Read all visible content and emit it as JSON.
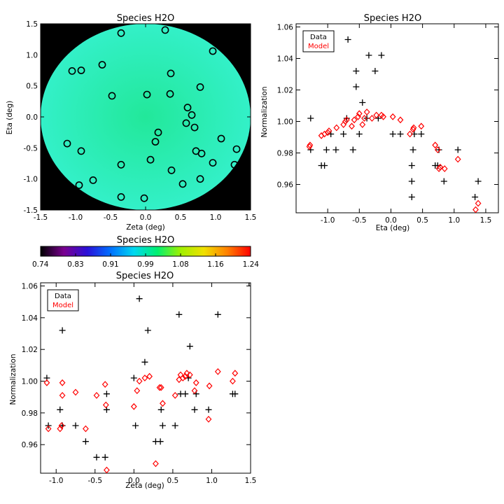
{
  "chart_data": [
    {
      "id": "map",
      "type": "scatter",
      "title": "Species H2O",
      "xlabel": "Zeta (deg)",
      "ylabel": "Eta (deg)",
      "xlim": [
        -1.5,
        1.5
      ],
      "ylim": [
        -1.5,
        1.5
      ],
      "xticks": [
        "-1.5",
        "-1.0",
        "-0.5",
        "0.0",
        "0.5",
        "1.0",
        "1.5"
      ],
      "yticks": [
        "-1.5",
        "-1.0",
        "-0.5",
        "0.0",
        "0.5",
        "1.0",
        "1.5"
      ],
      "background_color": "#000000",
      "disk_color": "#22e89a",
      "disk_edge_color": "#33f0c8",
      "marker": "circle",
      "marker_color": "#000000",
      "points": [
        [
          -0.35,
          1.35
        ],
        [
          0.28,
          1.4
        ],
        [
          -1.05,
          0.74
        ],
        [
          -0.92,
          0.75
        ],
        [
          -0.62,
          0.84
        ],
        [
          0.96,
          1.06
        ],
        [
          -0.48,
          0.34
        ],
        [
          0.02,
          0.36
        ],
        [
          0.35,
          0.37
        ],
        [
          0.36,
          0.7
        ],
        [
          0.78,
          0.48
        ],
        [
          0.6,
          0.15
        ],
        [
          0.66,
          0.03
        ],
        [
          0.58,
          -0.1
        ],
        [
          0.7,
          -0.17
        ],
        [
          0.18,
          -0.25
        ],
        [
          0.14,
          -0.4
        ],
        [
          1.08,
          -0.35
        ],
        [
          1.3,
          -0.52
        ],
        [
          -1.12,
          -0.43
        ],
        [
          -0.92,
          -0.55
        ],
        [
          0.72,
          -0.55
        ],
        [
          0.8,
          -0.59
        ],
        [
          0.96,
          -0.74
        ],
        [
          -0.35,
          -0.77
        ],
        [
          0.07,
          -0.69
        ],
        [
          0.37,
          -0.86
        ],
        [
          1.27,
          -0.77
        ],
        [
          -0.75,
          -1.02
        ],
        [
          -0.95,
          -1.1
        ],
        [
          0.53,
          -1.08
        ],
        [
          0.78,
          -1.0
        ],
        [
          -0.35,
          -1.29
        ],
        [
          -0.02,
          -1.31
        ]
      ]
    },
    {
      "id": "colorbar",
      "type": "heatmap",
      "title": "Species H2O",
      "range": [
        0.74,
        1.24
      ],
      "tick_labels": [
        "0.74",
        "0.83",
        "0.91",
        "0.99",
        "1.08",
        "1.16",
        "1.24"
      ],
      "colormap": [
        "#000000",
        "#7a0090",
        "#2a10d8",
        "#0070ff",
        "#00d8f0",
        "#00f070",
        "#a0f000",
        "#f0e000",
        "#ff8000",
        "#ff0000"
      ]
    },
    {
      "id": "eta",
      "type": "scatter",
      "title": "Species H2O",
      "xlabel": "Eta (deg)",
      "ylabel": "Normalization",
      "xlim": [
        -1.5,
        1.7
      ],
      "ylim": [
        0.942,
        1.062
      ],
      "xticks": [
        -1.0,
        -0.5,
        0.0,
        0.5,
        1.0,
        1.5
      ],
      "xtick_labels": [
        "-1.0",
        "-0.5",
        "0.0",
        "0.5",
        "1.0",
        "1.5"
      ],
      "yticks": [
        0.96,
        0.98,
        1.0,
        1.02,
        1.04,
        1.06
      ],
      "ytick_labels": [
        "0.96",
        "0.98",
        "1.00",
        "1.02",
        "1.04",
        "1.06"
      ],
      "legend": {
        "position": "top-left",
        "entries": [
          {
            "label": "Data",
            "color": "#000000"
          },
          {
            "label": "Model",
            "color": "#ff0000"
          }
        ]
      },
      "series": [
        {
          "name": "Data",
          "marker": "plus",
          "color": "#000000",
          "points": [
            [
              -1.27,
              1.002
            ],
            [
              -1.27,
              0.982
            ],
            [
              -1.1,
              0.972
            ],
            [
              -1.05,
              0.972
            ],
            [
              -1.02,
              0.982
            ],
            [
              -0.95,
              0.992
            ],
            [
              -0.87,
              0.982
            ],
            [
              -0.75,
              0.992
            ],
            [
              -0.7,
              1.002
            ],
            [
              -0.68,
              1.052
            ],
            [
              -0.6,
              0.982
            ],
            [
              -0.55,
              1.022
            ],
            [
              -0.55,
              1.032
            ],
            [
              -0.5,
              0.992
            ],
            [
              -0.45,
              1.012
            ],
            [
              -0.38,
              1.002
            ],
            [
              -0.35,
              1.042
            ],
            [
              -0.25,
              1.032
            ],
            [
              -0.15,
              1.042
            ],
            [
              -0.2,
              1.002
            ],
            [
              0.03,
              0.992
            ],
            [
              0.15,
              0.992
            ],
            [
              0.33,
              0.972
            ],
            [
              0.33,
              0.962
            ],
            [
              0.33,
              0.952
            ],
            [
              0.35,
              0.982
            ],
            [
              0.37,
              0.992
            ],
            [
              0.48,
              0.992
            ],
            [
              0.7,
              0.972
            ],
            [
              0.74,
              0.972
            ],
            [
              0.76,
              0.982
            ],
            [
              0.84,
              0.962
            ],
            [
              1.06,
              0.982
            ],
            [
              1.33,
              0.952
            ],
            [
              1.38,
              0.962
            ]
          ]
        },
        {
          "name": "Model",
          "marker": "diamond",
          "color": "#ff0000",
          "points": [
            [
              -1.29,
              0.984
            ],
            [
              -1.28,
              0.985
            ],
            [
              -1.1,
              0.991
            ],
            [
              -1.05,
              0.992
            ],
            [
              -1.0,
              0.993
            ],
            [
              -0.98,
              0.994
            ],
            [
              -0.86,
              0.996
            ],
            [
              -0.75,
              0.998
            ],
            [
              -0.72,
              1.0
            ],
            [
              -0.7,
              1.001
            ],
            [
              -0.62,
              0.997
            ],
            [
              -0.58,
              1.001
            ],
            [
              -0.52,
              1.003
            ],
            [
              -0.5,
              1.005
            ],
            [
              -0.45,
              0.998
            ],
            [
              -0.42,
              1.002
            ],
            [
              -0.38,
              1.006
            ],
            [
              -0.3,
              1.002
            ],
            [
              -0.23,
              1.004
            ],
            [
              -0.15,
              1.004
            ],
            [
              -0.12,
              1.003
            ],
            [
              0.03,
              1.003
            ],
            [
              0.15,
              1.001
            ],
            [
              0.3,
              0.992
            ],
            [
              0.35,
              0.995
            ],
            [
              0.36,
              0.996
            ],
            [
              0.48,
              0.997
            ],
            [
              0.7,
              0.985
            ],
            [
              0.74,
              0.982
            ],
            [
              0.76,
              0.97
            ],
            [
              0.78,
              0.971
            ],
            [
              0.85,
              0.97
            ],
            [
              1.06,
              0.976
            ],
            [
              1.34,
              0.944
            ],
            [
              1.38,
              0.948
            ]
          ]
        }
      ]
    },
    {
      "id": "zeta",
      "type": "scatter",
      "title": "Species H2O",
      "xlabel": "Zeta (deg)",
      "ylabel": "Normalization",
      "xlim": [
        -1.2,
        1.5
      ],
      "ylim": [
        0.942,
        1.062
      ],
      "xticks": [
        -1.0,
        -0.5,
        0.0,
        0.5,
        1.0,
        1.5
      ],
      "xtick_labels": [
        "-1.0",
        "-0.5",
        "0.0",
        "0.5",
        "1.0",
        "1.5"
      ],
      "yticks": [
        0.96,
        0.98,
        1.0,
        1.02,
        1.04,
        1.06
      ],
      "ytick_labels": [
        "0.96",
        "0.98",
        "1.00",
        "1.02",
        "1.04",
        "1.06"
      ],
      "legend": {
        "position": "top-left",
        "entries": [
          {
            "label": "Data",
            "color": "#000000"
          },
          {
            "label": "Model",
            "color": "#ff0000"
          }
        ]
      },
      "series": [
        {
          "name": "Data",
          "marker": "plus",
          "color": "#000000",
          "points": [
            [
              -1.12,
              1.002
            ],
            [
              -1.1,
              0.972
            ],
            [
              -0.95,
              0.982
            ],
            [
              -0.92,
              0.972
            ],
            [
              -0.92,
              1.032
            ],
            [
              -0.75,
              0.972
            ],
            [
              -0.62,
              0.962
            ],
            [
              -0.48,
              0.952
            ],
            [
              -0.37,
              0.952
            ],
            [
              -0.35,
              0.982
            ],
            [
              -0.35,
              0.992
            ],
            [
              0.0,
              1.002
            ],
            [
              0.02,
              0.972
            ],
            [
              0.07,
              1.052
            ],
            [
              0.14,
              1.012
            ],
            [
              0.18,
              1.032
            ],
            [
              0.28,
              0.962
            ],
            [
              0.34,
              0.962
            ],
            [
              0.35,
              0.982
            ],
            [
              0.37,
              0.972
            ],
            [
              0.53,
              0.972
            ],
            [
              0.58,
              1.042
            ],
            [
              0.6,
              0.992
            ],
            [
              0.66,
              0.992
            ],
            [
              0.7,
              1.002
            ],
            [
              0.72,
              1.022
            ],
            [
              0.78,
              0.982
            ],
            [
              0.8,
              0.992
            ],
            [
              0.96,
              0.982
            ],
            [
              1.08,
              1.042
            ],
            [
              1.27,
              0.992
            ],
            [
              1.3,
              0.992
            ],
            [
              1.48,
              1.062
            ]
          ]
        },
        {
          "name": "Model",
          "marker": "diamond",
          "color": "#ff0000",
          "points": [
            [
              -1.12,
              0.999
            ],
            [
              -1.1,
              0.97
            ],
            [
              -0.95,
              0.97
            ],
            [
              -0.93,
              0.972
            ],
            [
              -0.92,
              0.991
            ],
            [
              -0.92,
              0.999
            ],
            [
              -0.75,
              0.993
            ],
            [
              -0.62,
              0.97
            ],
            [
              -0.48,
              0.991
            ],
            [
              -0.37,
              0.998
            ],
            [
              -0.36,
              0.985
            ],
            [
              -0.35,
              0.944
            ],
            [
              0.0,
              0.984
            ],
            [
              0.04,
              0.994
            ],
            [
              0.07,
              1.0
            ],
            [
              0.14,
              1.002
            ],
            [
              0.2,
              1.003
            ],
            [
              0.28,
              0.948
            ],
            [
              0.33,
              0.996
            ],
            [
              0.35,
              0.996
            ],
            [
              0.37,
              0.986
            ],
            [
              0.53,
              0.991
            ],
            [
              0.58,
              1.001
            ],
            [
              0.6,
              1.004
            ],
            [
              0.63,
              1.002
            ],
            [
              0.66,
              1.003
            ],
            [
              0.68,
              1.005
            ],
            [
              0.72,
              1.004
            ],
            [
              0.78,
              0.994
            ],
            [
              0.8,
              0.999
            ],
            [
              0.96,
              0.976
            ],
            [
              0.97,
              0.997
            ],
            [
              1.08,
              1.006
            ],
            [
              1.27,
              1.0
            ],
            [
              1.3,
              1.005
            ]
          ]
        }
      ]
    }
  ]
}
